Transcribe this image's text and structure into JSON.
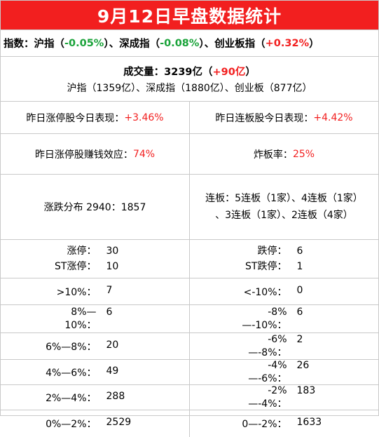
{
  "title": "9月12日早盘数据统计",
  "index_row": {
    "prefix": "指数：沪指（",
    "sh_value": "-0.05%",
    "mid1": "）、深成指（",
    "sz_value": "-0.08%",
    "mid2": "）、创业板指（",
    "cy_value": "+0.32%",
    "suffix": "）"
  },
  "volume": {
    "prefix": "成交量：3239亿（",
    "change": "+90亿",
    "suffix": "）",
    "detail": "沪指（1359亿）、深成指（1880亿）、创业板（877亿）"
  },
  "stats": {
    "yesterday_limit_up_label": "昨日涨停股今日表现：",
    "yesterday_limit_up_value": "+3.46%",
    "consecutive_label": "昨日连板股今日表现：",
    "consecutive_value": "+4.42%",
    "profit_effect_label": "昨日涨停股赚钱效应：",
    "profit_effect_value": "74%",
    "blowup_label": "炸板率：",
    "blowup_value": "25%",
    "distribution": "涨跌分布 2940：1857",
    "streak_line1": "连板：5连板（1家）、4连板（1家）",
    "streak_line2": "、3连板（1家）、2连板（4家）"
  },
  "limits": {
    "up_label": "涨停：",
    "up_value": "30",
    "st_up_label": "ST涨停：",
    "st_up_value": "10",
    "down_label": "跌停：",
    "down_value": "6",
    "st_down_label": "ST跌停：",
    "st_down_value": "1"
  },
  "ranges": [
    {
      "up_label": ">10%：",
      "up_value": "7",
      "down_label": "<-10%：",
      "down_value": "0"
    },
    {
      "up_label": "8%—10%：",
      "up_value": "6",
      "down_label": "-8%—-10%：",
      "down_value": "6"
    },
    {
      "up_label": "6%—8%：",
      "up_value": "20",
      "down_label": "-6%—-8%：",
      "down_value": "2"
    },
    {
      "up_label": "4%—6%：",
      "up_value": "49",
      "down_label": "-4%—-6%：",
      "down_value": "26"
    },
    {
      "up_label": "2%—4%：",
      "up_value": "288",
      "down_label": "-2%—-4%：",
      "down_value": "183"
    },
    {
      "up_label": "0%—2%：",
      "up_value": "2529",
      "down_label": "0—-2%：",
      "down_value": "1633"
    }
  ],
  "colors": {
    "title_bg": "#f21f1f",
    "up": "#f21f1f",
    "down": "#1aa33a",
    "border": "#c9c9c9"
  }
}
